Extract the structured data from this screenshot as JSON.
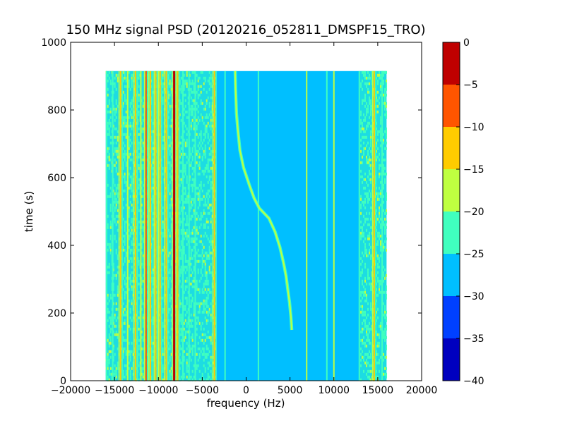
{
  "chart_data": {
    "type": "heatmap",
    "title": "150 MHz signal PSD (20120216_052811_DMSPF15_TRO)",
    "xlabel": "frequency (Hz)",
    "ylabel": "time (s)",
    "xlim": [
      -20000,
      20000
    ],
    "ylim": [
      0,
      1000
    ],
    "x_ticks": [
      -20000,
      -15000,
      -10000,
      -5000,
      0,
      5000,
      10000,
      15000,
      20000
    ],
    "x_tick_labels": [
      "−20000",
      "−15000",
      "−10000",
      "−5000",
      "0",
      "5000",
      "10000",
      "15000",
      "20000"
    ],
    "y_ticks": [
      0,
      200,
      400,
      600,
      800,
      1000
    ],
    "y_tick_labels": [
      "0",
      "200",
      "400",
      "600",
      "800",
      "1000"
    ],
    "data_extent": {
      "freq_min": -16000,
      "freq_max": 16000,
      "time_min": 0,
      "time_max": 915
    },
    "background_level": -27,
    "colorbar": {
      "levels": [
        -40,
        -35,
        -30,
        -25,
        -20,
        -15,
        -10,
        -5,
        0
      ],
      "tick_labels": [
        "−40",
        "−35",
        "−30",
        "−25",
        "−20",
        "−15",
        "−10",
        "−5",
        "0"
      ],
      "colors": [
        "#0000bf",
        "#0040ff",
        "#00bfff",
        "#40ffbf",
        "#bfff40",
        "#ffcc00",
        "#ff5500",
        "#bf0000"
      ]
    },
    "features": {
      "noise_band_left": {
        "freq_range": [
          -16000,
          -3500
        ],
        "level": -22
      },
      "noise_band_right": {
        "freq_range": [
          13000,
          16000
        ],
        "level": -23
      },
      "lines": [
        {
          "freq": -15900,
          "level": -22
        },
        {
          "freq": -15200,
          "level": -23
        },
        {
          "freq": -14300,
          "level": -12
        },
        {
          "freq": -13500,
          "level": -18
        },
        {
          "freq": -12600,
          "level": -14
        },
        {
          "freq": -12000,
          "level": -19
        },
        {
          "freq": -11400,
          "level": -10
        },
        {
          "freq": -10900,
          "level": -13
        },
        {
          "freq": -10300,
          "level": -11
        },
        {
          "freq": -9800,
          "level": -14
        },
        {
          "freq": -9100,
          "level": -12
        },
        {
          "freq": -8200,
          "level": -3
        },
        {
          "freq": -7800,
          "level": -14
        },
        {
          "freq": -7200,
          "level": -22
        },
        {
          "freq": -6500,
          "level": -21
        },
        {
          "freq": -5800,
          "level": -22
        },
        {
          "freq": -3600,
          "level": -12
        },
        {
          "freq": -2400,
          "level": -23
        },
        {
          "freq": 1400,
          "level": -22
        },
        {
          "freq": 6900,
          "level": -20
        },
        {
          "freq": 9200,
          "level": -21
        },
        {
          "freq": 10000,
          "level": -20
        },
        {
          "freq": 12900,
          "level": -22
        },
        {
          "freq": 14600,
          "level": -13
        },
        {
          "freq": 15500,
          "level": -22
        }
      ],
      "doppler_trace": {
        "level": -17,
        "points": [
          [
            5200,
            150
          ],
          [
            5100,
            190
          ],
          [
            4950,
            230
          ],
          [
            4750,
            270
          ],
          [
            4550,
            310
          ],
          [
            4250,
            350
          ],
          [
            3850,
            395
          ],
          [
            3300,
            440
          ],
          [
            2600,
            480
          ],
          [
            1500,
            510
          ],
          [
            900,
            540
          ],
          [
            350,
            580
          ],
          [
            -300,
            630
          ],
          [
            -700,
            680
          ],
          [
            -900,
            730
          ],
          [
            -1100,
            790
          ],
          [
            -1200,
            860
          ],
          [
            -1250,
            915
          ]
        ]
      }
    }
  }
}
